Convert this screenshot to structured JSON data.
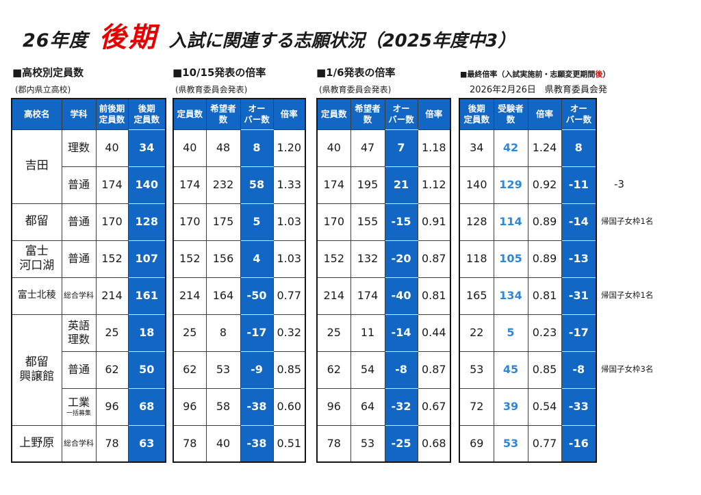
{
  "title": {
    "prefix": "26年度",
    "highlight": "後期",
    "suffix": "入試に関連する志願状況（2025年度中3）"
  },
  "colors": {
    "accent_blue": "#1266c4",
    "accent_blue_text": "#2e86d8",
    "accent_red": "#e60000"
  },
  "sections": [
    {
      "heading": "■高校別定員数",
      "subheading": "(郡内県立高校)"
    },
    {
      "heading": "■10/15発表の倍率",
      "subheading": "(県教育委員会発表)"
    },
    {
      "heading": "■1/6発表の倍率",
      "subheading": "(県教育委員会発表)"
    },
    {
      "heading_prefix": "■最終倍率（入試実施前・志願変更期間",
      "heading_red": "後",
      "heading_suffix": "）",
      "subheading": "2026年2月26日　県教育委員会発"
    }
  ],
  "tables": {
    "capacity": {
      "headers": [
        "高校名",
        "学科",
        "前後期\n定員数",
        "後期\n定員数"
      ]
    },
    "oct15": {
      "headers": [
        "定員数",
        "希望者\n数",
        "オー\nバー数",
        "倍率"
      ]
    },
    "jan6": {
      "headers": [
        "定員数",
        "希望者\n数",
        "オー\nバー数",
        "倍率"
      ]
    },
    "final": {
      "headers": [
        "後期\n定員数",
        "受験者\n数",
        "倍率",
        "オー\nバー数"
      ]
    }
  },
  "schools": [
    {
      "name": "吉田",
      "start": 0,
      "span": 2,
      "small": false
    },
    {
      "name": "都留",
      "start": 2,
      "span": 1,
      "small": false
    },
    {
      "name": "富士\n河口湖",
      "start": 3,
      "span": 1,
      "small": false
    },
    {
      "name": "富士北稜",
      "start": 4,
      "span": 1,
      "small": true
    },
    {
      "name": "都留\n興譲館",
      "start": 5,
      "span": 3,
      "small": false
    },
    {
      "name": "上野原",
      "start": 8,
      "span": 1,
      "small": false
    }
  ],
  "rows": [
    {
      "dept": "理数",
      "dept_sub": "",
      "dept_small": false,
      "zen": "40",
      "kouki": "34",
      "o_cap": "40",
      "o_hope": "48",
      "o_over": "8",
      "o_rate": "1.20",
      "j_cap": "40",
      "j_hope": "47",
      "j_over": "7",
      "j_rate": "1.18",
      "f_cap": "34",
      "f_exam": "42",
      "f_rate": "1.24",
      "f_over": "8"
    },
    {
      "dept": "普通",
      "dept_sub": "",
      "dept_small": false,
      "zen": "174",
      "kouki": "140",
      "o_cap": "174",
      "o_hope": "232",
      "o_over": "58",
      "o_rate": "1.33",
      "j_cap": "174",
      "j_hope": "195",
      "j_over": "21",
      "j_rate": "1.12",
      "f_cap": "140",
      "f_exam": "129",
      "f_rate": "0.92",
      "f_over": "-11"
    },
    {
      "dept": "普通",
      "dept_sub": "",
      "dept_small": false,
      "zen": "170",
      "kouki": "128",
      "o_cap": "170",
      "o_hope": "175",
      "o_over": "5",
      "o_rate": "1.03",
      "j_cap": "170",
      "j_hope": "155",
      "j_over": "-15",
      "j_rate": "0.91",
      "f_cap": "128",
      "f_exam": "114",
      "f_rate": "0.89",
      "f_over": "-14"
    },
    {
      "dept": "普通",
      "dept_sub": "",
      "dept_small": false,
      "zen": "152",
      "kouki": "107",
      "o_cap": "152",
      "o_hope": "156",
      "o_over": "4",
      "o_rate": "1.03",
      "j_cap": "152",
      "j_hope": "132",
      "j_over": "-20",
      "j_rate": "0.87",
      "f_cap": "118",
      "f_exam": "105",
      "f_rate": "0.89",
      "f_over": "-13"
    },
    {
      "dept": "総合学科",
      "dept_sub": "",
      "dept_small": true,
      "zen": "214",
      "kouki": "161",
      "o_cap": "214",
      "o_hope": "164",
      "o_over": "-50",
      "o_rate": "0.77",
      "j_cap": "214",
      "j_hope": "174",
      "j_over": "-40",
      "j_rate": "0.81",
      "f_cap": "165",
      "f_exam": "134",
      "f_rate": "0.81",
      "f_over": "-31"
    },
    {
      "dept": "英語\n理数",
      "dept_sub": "",
      "dept_small": false,
      "zen": "25",
      "kouki": "18",
      "o_cap": "25",
      "o_hope": "8",
      "o_over": "-17",
      "o_rate": "0.32",
      "j_cap": "25",
      "j_hope": "11",
      "j_over": "-14",
      "j_rate": "0.44",
      "f_cap": "22",
      "f_exam": "5",
      "f_rate": "0.23",
      "f_over": "-17"
    },
    {
      "dept": "普通",
      "dept_sub": "",
      "dept_small": false,
      "zen": "62",
      "kouki": "50",
      "o_cap": "62",
      "o_hope": "53",
      "o_over": "-9",
      "o_rate": "0.85",
      "j_cap": "62",
      "j_hope": "54",
      "j_over": "-8",
      "j_rate": "0.87",
      "f_cap": "53",
      "f_exam": "45",
      "f_rate": "0.85",
      "f_over": "-8"
    },
    {
      "dept": "工業",
      "dept_sub": "一括募集",
      "dept_small": false,
      "zen": "96",
      "kouki": "68",
      "o_cap": "96",
      "o_hope": "58",
      "o_over": "-38",
      "o_rate": "0.60",
      "j_cap": "96",
      "j_hope": "64",
      "j_over": "-32",
      "j_rate": "0.67",
      "f_cap": "72",
      "f_exam": "39",
      "f_rate": "0.54",
      "f_over": "-33"
    },
    {
      "dept": "総合学科",
      "dept_sub": "",
      "dept_small": true,
      "zen": "78",
      "kouki": "63",
      "o_cap": "78",
      "o_hope": "40",
      "o_over": "-38",
      "o_rate": "0.51",
      "j_cap": "78",
      "j_hope": "53",
      "j_over": "-25",
      "j_rate": "0.68",
      "f_cap": "69",
      "f_exam": "53",
      "f_rate": "0.77",
      "f_over": "-16"
    }
  ],
  "notes": [
    {
      "row": 1,
      "text": "-3",
      "big": true
    },
    {
      "row": 2,
      "text": "帰国子女枠1名",
      "big": false
    },
    {
      "row": 4,
      "text": "帰国子女枠1名",
      "big": false
    },
    {
      "row": 6,
      "text": "帰国子女枠3名",
      "big": false
    }
  ]
}
